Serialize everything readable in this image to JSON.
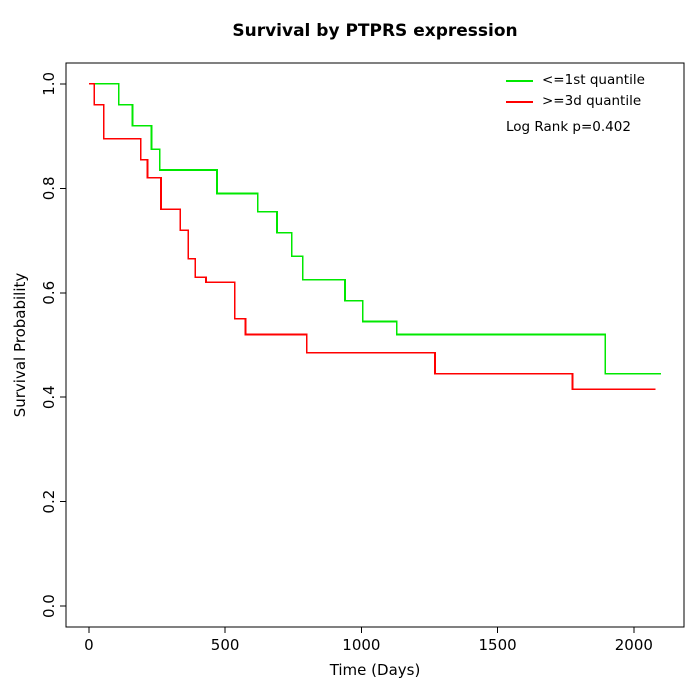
{
  "chart_data": {
    "type": "line",
    "subtype": "step-survival",
    "title": "Survival by PTPRS expression",
    "xlabel": "Time (Days)",
    "ylabel": "Survival Probability",
    "xlim": [
      0,
      2100
    ],
    "ylim": [
      0,
      1
    ],
    "x_ticks": [
      0,
      500,
      1000,
      1500,
      2000
    ],
    "y_ticks": [
      "0.0",
      "0.2",
      "0.4",
      "0.6",
      "0.8",
      "1.0"
    ],
    "grid": false,
    "legend_position": "top-right",
    "annotation": "Log Rank p=0.402",
    "series": [
      {
        "name": "<=1st quantile",
        "color": "#00e800",
        "points": [
          [
            0,
            1.0
          ],
          [
            110,
            0.96
          ],
          [
            160,
            0.92
          ],
          [
            230,
            0.875
          ],
          [
            260,
            0.835
          ],
          [
            470,
            0.79
          ],
          [
            620,
            0.755
          ],
          [
            690,
            0.715
          ],
          [
            745,
            0.67
          ],
          [
            785,
            0.625
          ],
          [
            940,
            0.585
          ],
          [
            1005,
            0.545
          ],
          [
            1130,
            0.52
          ],
          [
            1895,
            0.445
          ],
          [
            2100,
            0.445
          ]
        ]
      },
      {
        "name": ">=3d quantile",
        "color": "#ff0000",
        "points": [
          [
            0,
            1.0
          ],
          [
            20,
            0.96
          ],
          [
            55,
            0.895
          ],
          [
            190,
            0.855
          ],
          [
            215,
            0.82
          ],
          [
            265,
            0.76
          ],
          [
            335,
            0.72
          ],
          [
            365,
            0.665
          ],
          [
            390,
            0.63
          ],
          [
            430,
            0.62
          ],
          [
            535,
            0.55
          ],
          [
            575,
            0.52
          ],
          [
            800,
            0.485
          ],
          [
            1270,
            0.445
          ],
          [
            1775,
            0.415
          ],
          [
            2080,
            0.415
          ]
        ]
      }
    ]
  }
}
